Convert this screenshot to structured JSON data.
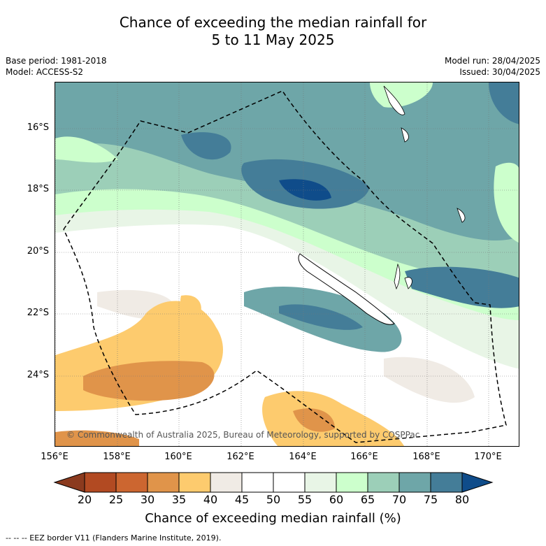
{
  "title_line1": "Chance of exceeding the median rainfall for",
  "title_line2": "5 to 11 May 2025",
  "base_period": "Base period: 1981-2018",
  "model": "Model: ACCESS-S2",
  "model_run": "Model run: 28/04/2025",
  "issued": "Issued: 30/04/2025",
  "copyright": "© Commonwealth of Australia 2025, Bureau of Meteorology, supported by COSPPac",
  "lat_labels": [
    "16°S",
    "18°S",
    "20°S",
    "22°S",
    "24°S"
  ],
  "lon_labels": [
    "156°E",
    "158°E",
    "160°E",
    "162°E",
    "164°E",
    "166°E",
    "168°E",
    "170°E"
  ],
  "colorbar": {
    "ticks": [
      "20",
      "25",
      "30",
      "35",
      "40",
      "45",
      "50",
      "55",
      "60",
      "65",
      "70",
      "75",
      "80"
    ],
    "colors": [
      "#8b3a1e",
      "#b24a22",
      "#cc6630",
      "#e0944a",
      "#fdcb6e",
      "#f0ebe5",
      "#ffffff",
      "#ffffff",
      "#e8f5e6",
      "#ccffcc",
      "#9ccfb8",
      "#6ea6a8",
      "#447d98",
      "#0f4c8a"
    ],
    "title": "Chance of exceeding median rainfall (%)"
  },
  "legend_footer": "--  --  -- EEZ border V11 (Flanders Marine Institute, 2019)."
}
